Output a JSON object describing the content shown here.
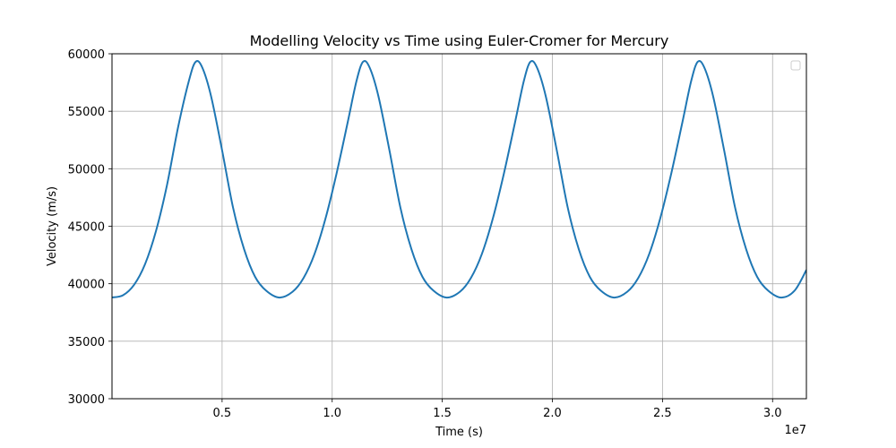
{
  "chart_data": {
    "type": "line",
    "title": "Modelling Velocity vs Time using Euler-Cromer for Mercury",
    "xlabel": "Time (s)",
    "ylabel": "Velocity (m/s)",
    "x_offset_label": "1e7",
    "xlim": [
      0,
      31536000
    ],
    "ylim": [
      30000,
      60000
    ],
    "x_ticks": [
      {
        "value": 5000000,
        "label": "0.5"
      },
      {
        "value": 10000000,
        "label": "1.0"
      },
      {
        "value": 15000000,
        "label": "1.5"
      },
      {
        "value": 20000000,
        "label": "2.0"
      },
      {
        "value": 25000000,
        "label": "2.5"
      },
      {
        "value": 30000000,
        "label": "3.0"
      }
    ],
    "y_ticks": [
      {
        "value": 30000,
        "label": "30000"
      },
      {
        "value": 35000,
        "label": "35000"
      },
      {
        "value": 40000,
        "label": "40000"
      },
      {
        "value": 45000,
        "label": "45000"
      },
      {
        "value": 50000,
        "label": "50000"
      },
      {
        "value": 55000,
        "label": "55000"
      },
      {
        "value": 60000,
        "label": "60000"
      }
    ],
    "grid": true,
    "legend": {
      "placement": "top-right",
      "entries": []
    },
    "series": [
      {
        "color": "#1f77b4",
        "x": [
          0,
          500000,
          1000000,
          1500000,
          2000000,
          2500000,
          3000000,
          3500000,
          3800000,
          4100000,
          4500000,
          5000000,
          5500000,
          6000000,
          6500000,
          7000000,
          7600000,
          8200000,
          8700000,
          9200000,
          9700000,
          10200000,
          10700000,
          11100000,
          11400000,
          11700000,
          12100000,
          12600000,
          13100000,
          13600000,
          14100000,
          14600000,
          15200000,
          15800000,
          16300000,
          16800000,
          17300000,
          17800000,
          18300000,
          18700000,
          19000000,
          19300000,
          19700000,
          20200000,
          20700000,
          21200000,
          21700000,
          22200000,
          22800000,
          23400000,
          23900000,
          24400000,
          24900000,
          25400000,
          25900000,
          26300000,
          26600000,
          26900000,
          27300000,
          27800000,
          28300000,
          28800000,
          29300000,
          29800000,
          30400000,
          31000000,
          31536000
        ],
        "y": [
          38800,
          39000,
          39900,
          41700,
          44600,
          48600,
          53600,
          57700,
          59300,
          58800,
          56300,
          51600,
          46600,
          43000,
          40600,
          39400,
          38800,
          39300,
          40500,
          42600,
          45700,
          49600,
          54000,
          57600,
          59300,
          58800,
          56300,
          51600,
          46600,
          43000,
          40600,
          39400,
          38800,
          39300,
          40500,
          42600,
          45700,
          49600,
          54000,
          57600,
          59300,
          58800,
          56300,
          51600,
          46600,
          43000,
          40600,
          39400,
          38800,
          39300,
          40500,
          42600,
          45700,
          49600,
          54000,
          57600,
          59300,
          58800,
          56300,
          51600,
          46600,
          43000,
          40600,
          39400,
          38800,
          39400,
          41200
        ]
      }
    ]
  }
}
